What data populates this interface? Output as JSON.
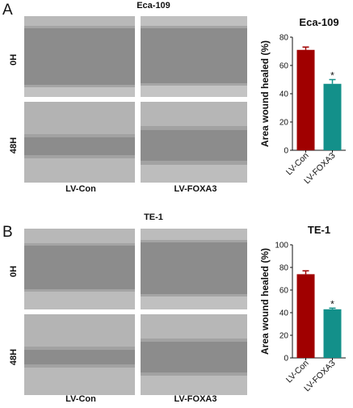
{
  "figure": {
    "panels": [
      {
        "letter": "A",
        "image_title": "Eca-109",
        "row_labels": [
          "0H",
          "48H"
        ],
        "col_labels": [
          "LV-Con",
          "LV-FOXA3"
        ],
        "accent": "#a8a8a8"
      },
      {
        "letter": "B",
        "image_title": "TE-1",
        "row_labels": [
          "0H",
          "48H"
        ],
        "col_labels": [
          "LV-Con",
          "LV-FOXA3"
        ],
        "accent": "#a8a8a8"
      }
    ]
  },
  "chart_data": [
    {
      "type": "bar",
      "title": "Eca-109",
      "ylabel": "Area wound healed (%)",
      "xlabel": "",
      "categories": [
        "LV-Con",
        "LV-FOXA3"
      ],
      "values": [
        71,
        47
      ],
      "errors": [
        2,
        3
      ],
      "significance": [
        "",
        "*"
      ],
      "colors": [
        "#a00000",
        "#13908a"
      ],
      "ylim": [
        0,
        80
      ],
      "yticks": [
        0,
        20,
        40,
        60,
        80
      ],
      "grid": false,
      "legend": "none"
    },
    {
      "type": "bar",
      "title": "TE-1",
      "ylabel": "Area wound healed (%)",
      "xlabel": "",
      "categories": [
        "LV-Con",
        "LV-FOXA3"
      ],
      "values": [
        74,
        43
      ],
      "errors": [
        3,
        1
      ],
      "significance": [
        "",
        "*"
      ],
      "colors": [
        "#a00000",
        "#13908a"
      ],
      "ylim": [
        0,
        100
      ],
      "yticks": [
        0,
        20,
        40,
        60,
        80,
        100
      ],
      "grid": false,
      "legend": "none"
    }
  ]
}
